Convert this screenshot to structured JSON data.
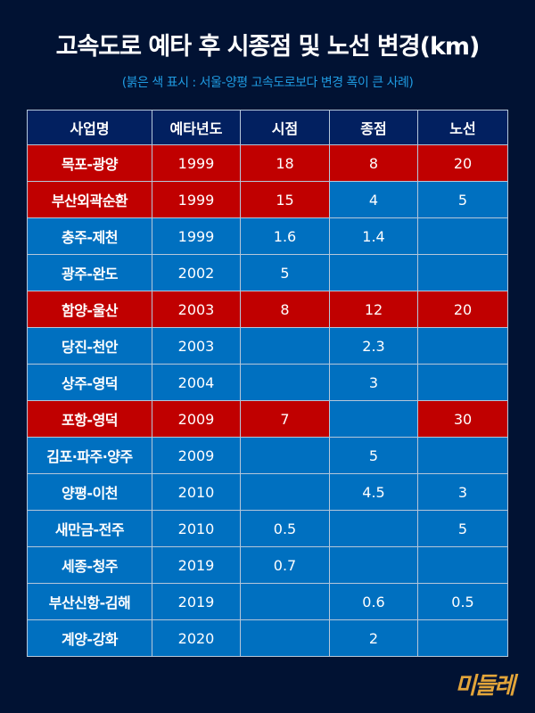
{
  "header": {
    "title": "고속도로 예타 후 시종점 및 노선 변경(km)",
    "subtitle": "(붉은 색 표시 : 서울-양평 고속도로보다 변경 폭이 큰 사례)"
  },
  "colors": {
    "background": "#011233",
    "header_row": "#022060",
    "highlight_red": "#c00000",
    "normal_blue": "#0070c0",
    "subtitle": "#1f9ae0",
    "logo": "#e3a53a"
  },
  "table": {
    "columns": [
      "사업명",
      "예타년도",
      "시점",
      "종점",
      "노선"
    ],
    "rows": [
      {
        "cells": [
          "목포-광양",
          "1999",
          "18",
          "8",
          "20"
        ],
        "colors": [
          "red",
          "red",
          "red",
          "red",
          "red"
        ]
      },
      {
        "cells": [
          "부산외곽순환",
          "1999",
          "15",
          "4",
          "5"
        ],
        "colors": [
          "red",
          "red",
          "red",
          "blue",
          "blue"
        ]
      },
      {
        "cells": [
          "충주-제천",
          "1999",
          "1.6",
          "1.4",
          ""
        ],
        "colors": [
          "blue",
          "blue",
          "blue",
          "blue",
          "blue"
        ]
      },
      {
        "cells": [
          "광주-완도",
          "2002",
          "5",
          "",
          ""
        ],
        "colors": [
          "blue",
          "blue",
          "blue",
          "blue",
          "blue"
        ]
      },
      {
        "cells": [
          "함양-울산",
          "2003",
          "8",
          "12",
          "20"
        ],
        "colors": [
          "red",
          "red",
          "red",
          "red",
          "red"
        ]
      },
      {
        "cells": [
          "당진-천안",
          "2003",
          "",
          "2.3",
          ""
        ],
        "colors": [
          "blue",
          "blue",
          "blue",
          "blue",
          "blue"
        ]
      },
      {
        "cells": [
          "상주-영덕",
          "2004",
          "",
          "3",
          ""
        ],
        "colors": [
          "blue",
          "blue",
          "blue",
          "blue",
          "blue"
        ]
      },
      {
        "cells": [
          "포항-영덕",
          "2009",
          "7",
          "",
          "30"
        ],
        "colors": [
          "red",
          "red",
          "red",
          "blue",
          "red"
        ]
      },
      {
        "cells": [
          "김포·파주·양주",
          "2009",
          "",
          "5",
          ""
        ],
        "colors": [
          "blue",
          "blue",
          "blue",
          "blue",
          "blue"
        ]
      },
      {
        "cells": [
          "양평-이천",
          "2010",
          "",
          "4.5",
          "3"
        ],
        "colors": [
          "blue",
          "blue",
          "blue",
          "blue",
          "blue"
        ]
      },
      {
        "cells": [
          "새만금-전주",
          "2010",
          "0.5",
          "",
          "5"
        ],
        "colors": [
          "blue",
          "blue",
          "blue",
          "blue",
          "blue"
        ]
      },
      {
        "cells": [
          "세종-청주",
          "2019",
          "0.7",
          "",
          ""
        ],
        "colors": [
          "blue",
          "blue",
          "blue",
          "blue",
          "blue"
        ]
      },
      {
        "cells": [
          "부산신항-김해",
          "2019",
          "",
          "0.6",
          "0.5"
        ],
        "colors": [
          "blue",
          "blue",
          "blue",
          "blue",
          "blue"
        ]
      },
      {
        "cells": [
          "계양-강화",
          "2020",
          "",
          "2",
          ""
        ],
        "colors": [
          "blue",
          "blue",
          "blue",
          "blue",
          "blue"
        ]
      }
    ]
  },
  "logo": {
    "text": "미들레",
    "icon": "hankyoreh-logo"
  }
}
